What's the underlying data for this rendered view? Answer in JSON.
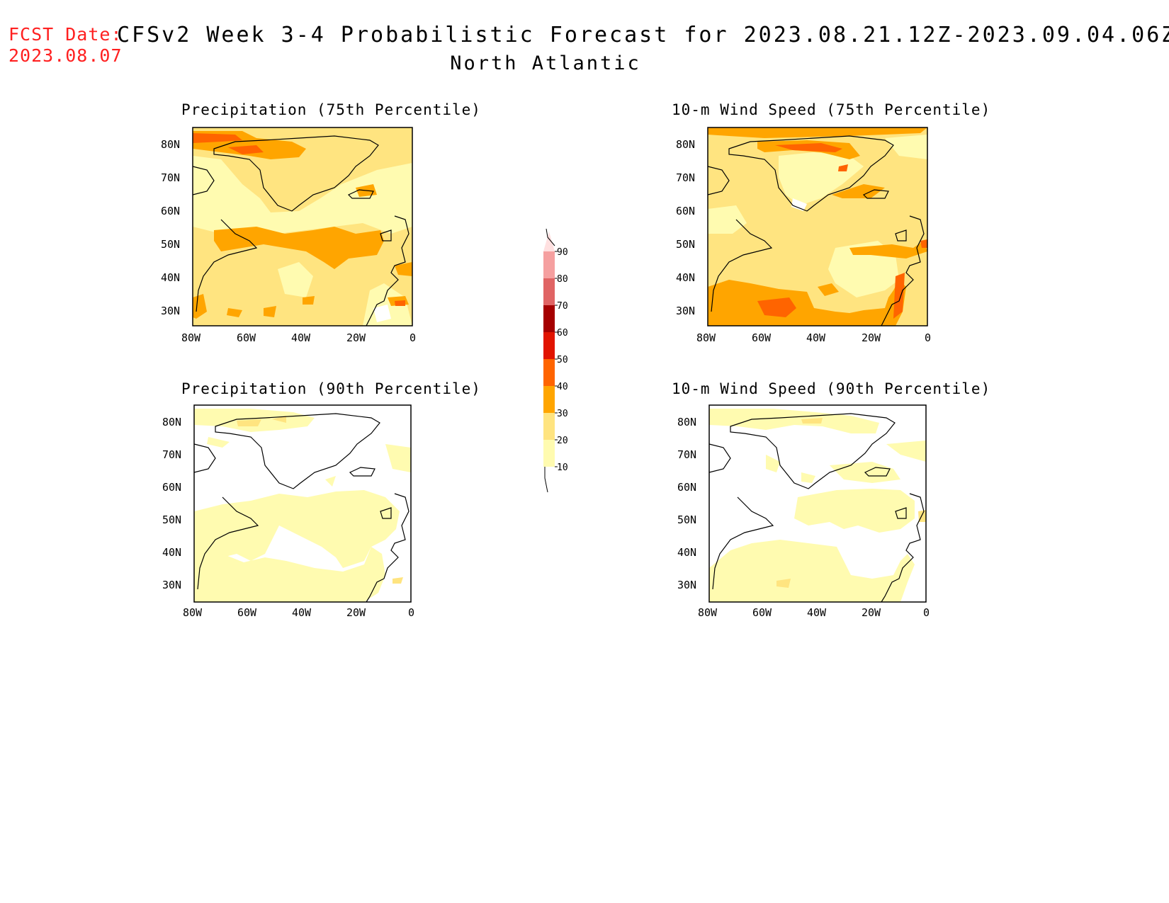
{
  "header": {
    "fcst_label": "FCST Date:",
    "fcst_date": "2023.08.07",
    "title": "CFSv2 Week 3-4 Probabilistic Forecast for 2023.08.21.12Z-2023.09.04.06Z",
    "region": "North Atlantic"
  },
  "axes": {
    "lat_ticks": [
      "80N",
      "70N",
      "60N",
      "50N",
      "40N",
      "30N"
    ],
    "lon_ticks": [
      "80W",
      "60W",
      "40W",
      "20W",
      "0"
    ]
  },
  "panels": [
    {
      "id": "precip75",
      "title": "Precipitation (75th Percentile)",
      "dominant_level": "20-30"
    },
    {
      "id": "wind75",
      "title": "10-m Wind Speed (75th Percentile)",
      "dominant_level": "20-30"
    },
    {
      "id": "precip90",
      "title": "Precipitation (90th Percentile)",
      "dominant_level": "0-20"
    },
    {
      "id": "wind90",
      "title": "10-m Wind Speed (90th Percentile)",
      "dominant_level": "0-20"
    }
  ],
  "colorbar": {
    "ticks": [
      "10",
      "20",
      "30",
      "40",
      "50",
      "60",
      "70",
      "80",
      "90"
    ],
    "colors": [
      "#fffbb0",
      "#ffe480",
      "#ffa500",
      "#ff6400",
      "#e11400",
      "#a50000",
      "#e06464",
      "#f5a0a0",
      "#ffe0e0"
    ]
  },
  "colors": {
    "fcst": "#ff2020",
    "light_yellow": "#fffbb0",
    "yellow": "#ffe480",
    "orange": "#ffa500",
    "dark_orange": "#ff6400"
  }
}
